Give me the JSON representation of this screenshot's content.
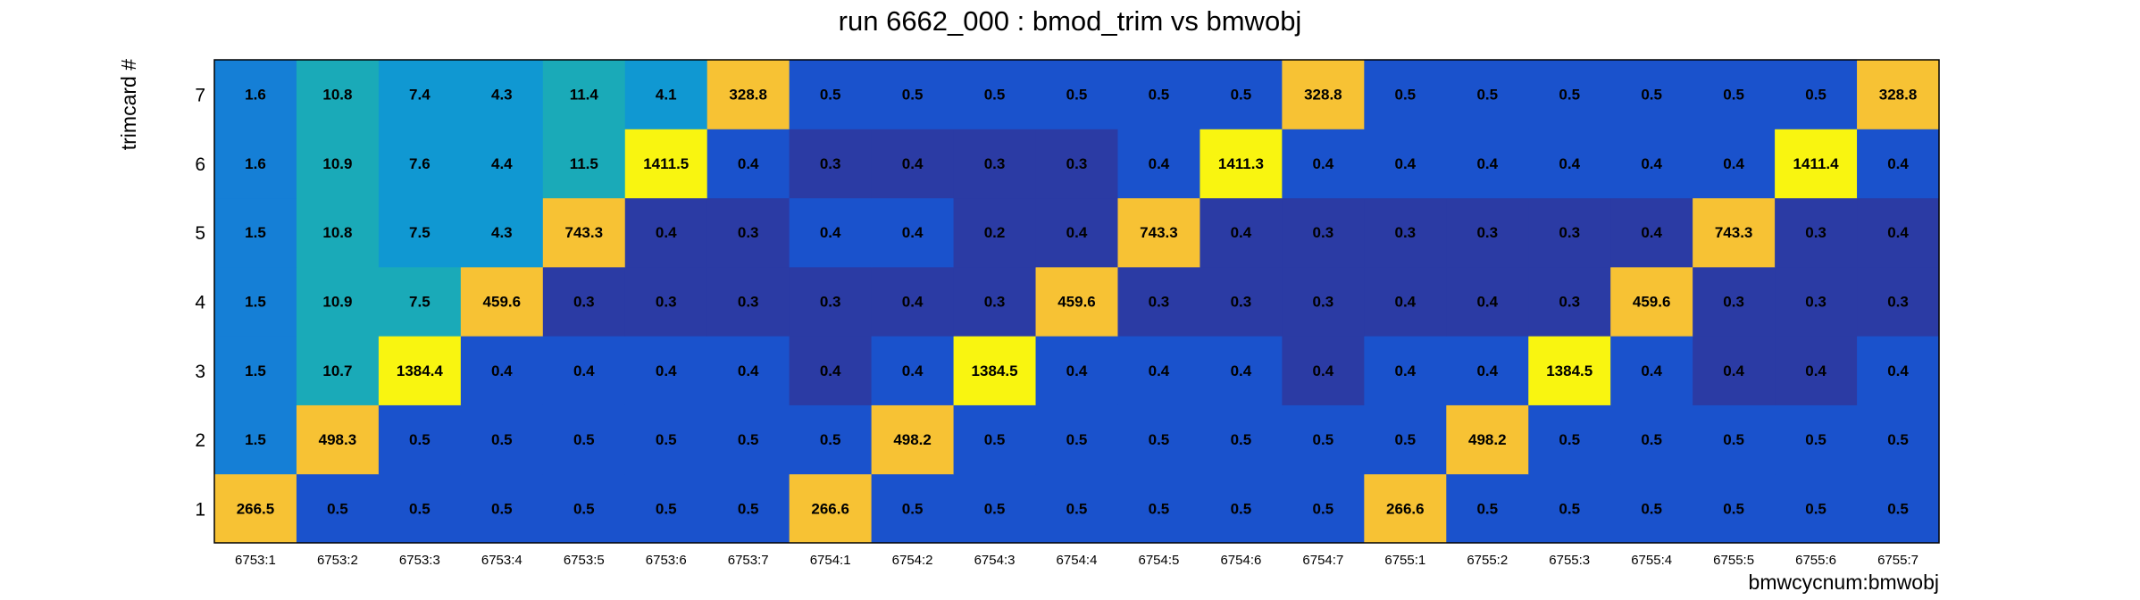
{
  "chart_data": {
    "type": "heatmap",
    "title": "run 6662_000 : bmod_trim vs bmwobj",
    "xlabel": "bmwcycnum:bmwobj",
    "ylabel": "trimcard #",
    "x_categories": [
      "6753:1",
      "6753:2",
      "6753:3",
      "6753:4",
      "6753:5",
      "6753:6",
      "6753:7",
      "6754:1",
      "6754:2",
      "6754:3",
      "6754:4",
      "6754:5",
      "6754:6",
      "6754:7",
      "6755:1",
      "6755:2",
      "6755:3",
      "6755:4",
      "6755:5",
      "6755:6",
      "6755:7"
    ],
    "y_categories": [
      "1",
      "2",
      "3",
      "4",
      "5",
      "6",
      "7"
    ],
    "values": [
      [
        "266.5",
        "0.5",
        "0.5",
        "0.5",
        "0.5",
        "0.5",
        "0.5",
        "266.6",
        "0.5",
        "0.5",
        "0.5",
        "0.5",
        "0.5",
        "0.5",
        "266.6",
        "0.5",
        "0.5",
        "0.5",
        "0.5",
        "0.5",
        "0.5"
      ],
      [
        "1.5",
        "498.3",
        "0.5",
        "0.5",
        "0.5",
        "0.5",
        "0.5",
        "0.5",
        "498.2",
        "0.5",
        "0.5",
        "0.5",
        "0.5",
        "0.5",
        "0.5",
        "498.2",
        "0.5",
        "0.5",
        "0.5",
        "0.5",
        "0.5"
      ],
      [
        "1.5",
        "10.7",
        "1384.4",
        "0.4",
        "0.4",
        "0.4",
        "0.4",
        "0.4",
        "0.4",
        "1384.5",
        "0.4",
        "0.4",
        "0.4",
        "0.4",
        "0.4",
        "0.4",
        "1384.5",
        "0.4",
        "0.4",
        "0.4",
        "0.4"
      ],
      [
        "1.5",
        "10.9",
        "7.5",
        "459.6",
        "0.3",
        "0.3",
        "0.3",
        "0.3",
        "0.4",
        "0.3",
        "459.6",
        "0.3",
        "0.3",
        "0.3",
        "0.4",
        "0.4",
        "0.3",
        "459.6",
        "0.3",
        "0.3",
        "0.3"
      ],
      [
        "1.5",
        "10.8",
        "7.5",
        "4.3",
        "743.3",
        "0.4",
        "0.3",
        "0.4",
        "0.4",
        "0.2",
        "0.4",
        "743.3",
        "0.4",
        "0.3",
        "0.3",
        "0.3",
        "0.3",
        "0.4",
        "743.3",
        "0.3",
        "0.4"
      ],
      [
        "1.6",
        "10.9",
        "7.6",
        "4.4",
        "11.5",
        "1411.5",
        "0.4",
        "0.3",
        "0.4",
        "0.3",
        "0.3",
        "0.4",
        "1411.3",
        "0.4",
        "0.4",
        "0.4",
        "0.4",
        "0.4",
        "0.4",
        "1411.4",
        "0.4"
      ],
      [
        "1.6",
        "10.8",
        "7.4",
        "4.3",
        "11.4",
        "4.1",
        "328.8",
        "0.5",
        "0.5",
        "0.5",
        "0.5",
        "0.5",
        "0.5",
        "328.8",
        "0.5",
        "0.5",
        "0.5",
        "0.5",
        "0.5",
        "0.5",
        "328.8"
      ]
    ],
    "colors": {
      "dark_navy": "#2b3ba4",
      "blue": "#1a52cc",
      "mid_blue": "#157fd6",
      "cyan_blue": "#1098d2",
      "teal": "#1aaab8",
      "orange": "#f7c234",
      "yellow": "#f9f510"
    },
    "cell_colors": [
      [
        "orange",
        "blue",
        "blue",
        "blue",
        "blue",
        "blue",
        "blue",
        "orange",
        "blue",
        "blue",
        "blue",
        "blue",
        "blue",
        "blue",
        "orange",
        "blue",
        "blue",
        "blue",
        "blue",
        "blue",
        "blue"
      ],
      [
        "mid_blue",
        "orange",
        "blue",
        "blue",
        "blue",
        "blue",
        "blue",
        "blue",
        "orange",
        "blue",
        "blue",
        "blue",
        "blue",
        "blue",
        "blue",
        "orange",
        "blue",
        "blue",
        "blue",
        "blue",
        "blue"
      ],
      [
        "mid_blue",
        "teal",
        "yellow",
        "blue",
        "blue",
        "blue",
        "blue",
        "dark_navy",
        "blue",
        "yellow",
        "blue",
        "blue",
        "blue",
        "dark_navy",
        "blue",
        "blue",
        "yellow",
        "blue",
        "dark_navy",
        "dark_navy",
        "blue"
      ],
      [
        "mid_blue",
        "teal",
        "teal",
        "orange",
        "dark_navy",
        "dark_navy",
        "dark_navy",
        "dark_navy",
        "dark_navy",
        "dark_navy",
        "orange",
        "dark_navy",
        "dark_navy",
        "dark_navy",
        "dark_navy",
        "dark_navy",
        "dark_navy",
        "orange",
        "dark_navy",
        "dark_navy",
        "dark_navy"
      ],
      [
        "mid_blue",
        "teal",
        "cyan_blue",
        "cyan_blue",
        "orange",
        "dark_navy",
        "dark_navy",
        "blue",
        "blue",
        "dark_navy",
        "dark_navy",
        "orange",
        "dark_navy",
        "dark_navy",
        "dark_navy",
        "dark_navy",
        "dark_navy",
        "dark_navy",
        "orange",
        "dark_navy",
        "dark_navy"
      ],
      [
        "mid_blue",
        "teal",
        "cyan_blue",
        "cyan_blue",
        "teal",
        "yellow",
        "blue",
        "dark_navy",
        "dark_navy",
        "dark_navy",
        "dark_navy",
        "blue",
        "yellow",
        "blue",
        "blue",
        "blue",
        "blue",
        "blue",
        "blue",
        "yellow",
        "blue"
      ],
      [
        "mid_blue",
        "teal",
        "cyan_blue",
        "cyan_blue",
        "teal",
        "cyan_blue",
        "orange",
        "blue",
        "blue",
        "blue",
        "blue",
        "blue",
        "blue",
        "orange",
        "blue",
        "blue",
        "blue",
        "blue",
        "blue",
        "blue",
        "orange"
      ]
    ]
  }
}
